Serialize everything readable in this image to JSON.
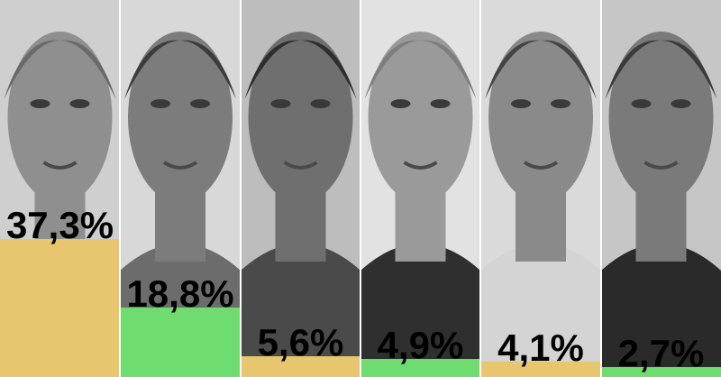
{
  "chart_data": {
    "type": "bar",
    "categories": [
      "",
      "",
      "",
      "",
      "",
      ""
    ],
    "values": [
      37.3,
      18.8,
      5.6,
      4.9,
      4.1,
      2.7
    ],
    "labels": [
      "37,3%",
      "18,8%",
      "5,6%",
      "4,9%",
      "4,1%",
      "2,7%"
    ],
    "bar_colors": [
      "#e8c56f",
      "#6fdc6f",
      "#e8c56f",
      "#6fdc6f",
      "#e8c56f",
      "#6fdc6f"
    ],
    "background": "grayscale-portrait-photos",
    "ylim": [
      0,
      100
    ],
    "grid": false,
    "legend": "none"
  }
}
